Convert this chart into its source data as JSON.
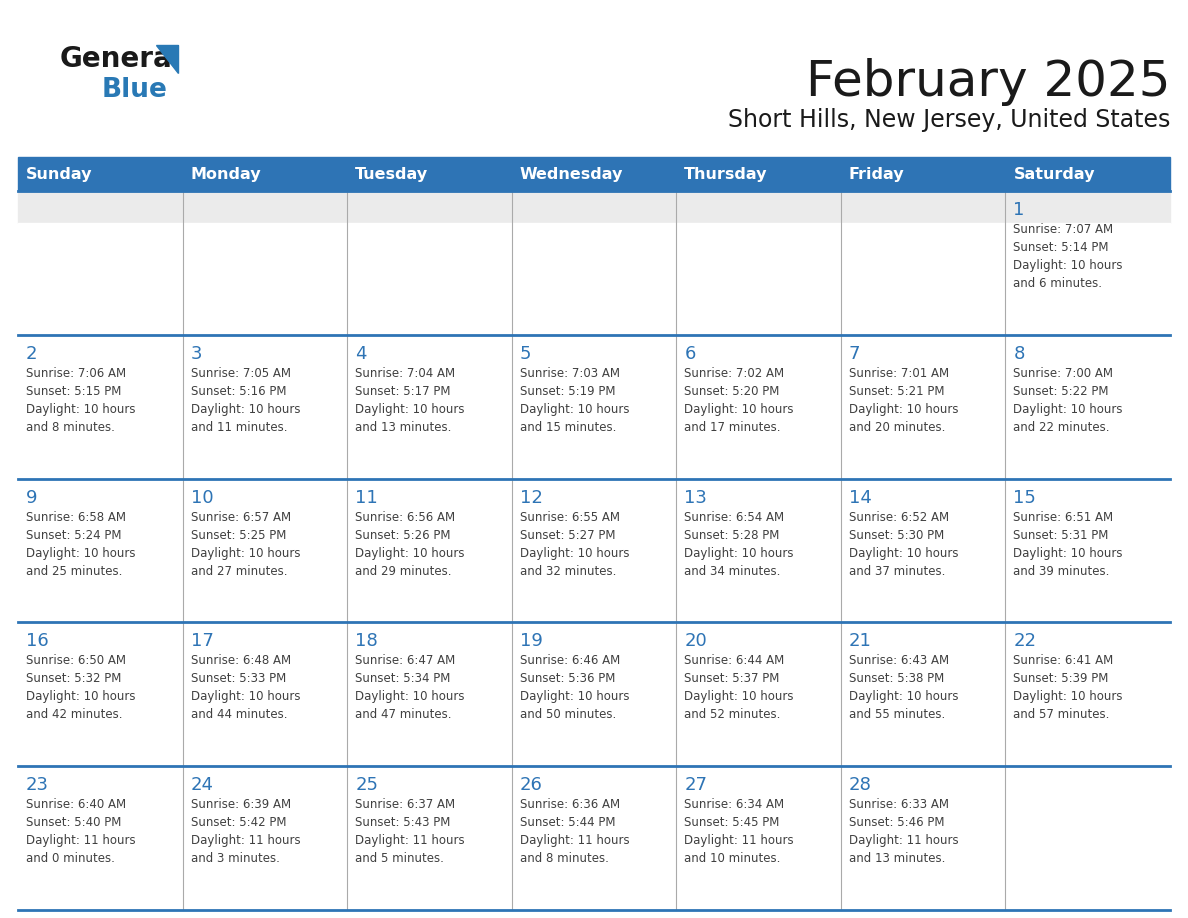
{
  "title": "February 2025",
  "subtitle": "Short Hills, New Jersey, United States",
  "header_bg": "#2E74B5",
  "header_text_color": "#FFFFFF",
  "weekdays": [
    "Sunday",
    "Monday",
    "Tuesday",
    "Wednesday",
    "Thursday",
    "Friday",
    "Saturday"
  ],
  "bg_color": "#FFFFFF",
  "first_row_bg": "#EBEBEB",
  "cell_text_color": "#404040",
  "day_num_color": "#2E74B5",
  "border_color": "#2E74B5",
  "col_sep_color": "#AAAAAA",
  "logo_general_color": "#1A1A1A",
  "logo_blue_color": "#2979B5",
  "title_color": "#1A1A1A",
  "subtitle_color": "#1A1A1A",
  "weeks": [
    [
      {
        "day": null,
        "info": null
      },
      {
        "day": null,
        "info": null
      },
      {
        "day": null,
        "info": null
      },
      {
        "day": null,
        "info": null
      },
      {
        "day": null,
        "info": null
      },
      {
        "day": null,
        "info": null
      },
      {
        "day": 1,
        "info": "Sunrise: 7:07 AM\nSunset: 5:14 PM\nDaylight: 10 hours\nand 6 minutes."
      }
    ],
    [
      {
        "day": 2,
        "info": "Sunrise: 7:06 AM\nSunset: 5:15 PM\nDaylight: 10 hours\nand 8 minutes."
      },
      {
        "day": 3,
        "info": "Sunrise: 7:05 AM\nSunset: 5:16 PM\nDaylight: 10 hours\nand 11 minutes."
      },
      {
        "day": 4,
        "info": "Sunrise: 7:04 AM\nSunset: 5:17 PM\nDaylight: 10 hours\nand 13 minutes."
      },
      {
        "day": 5,
        "info": "Sunrise: 7:03 AM\nSunset: 5:19 PM\nDaylight: 10 hours\nand 15 minutes."
      },
      {
        "day": 6,
        "info": "Sunrise: 7:02 AM\nSunset: 5:20 PM\nDaylight: 10 hours\nand 17 minutes."
      },
      {
        "day": 7,
        "info": "Sunrise: 7:01 AM\nSunset: 5:21 PM\nDaylight: 10 hours\nand 20 minutes."
      },
      {
        "day": 8,
        "info": "Sunrise: 7:00 AM\nSunset: 5:22 PM\nDaylight: 10 hours\nand 22 minutes."
      }
    ],
    [
      {
        "day": 9,
        "info": "Sunrise: 6:58 AM\nSunset: 5:24 PM\nDaylight: 10 hours\nand 25 minutes."
      },
      {
        "day": 10,
        "info": "Sunrise: 6:57 AM\nSunset: 5:25 PM\nDaylight: 10 hours\nand 27 minutes."
      },
      {
        "day": 11,
        "info": "Sunrise: 6:56 AM\nSunset: 5:26 PM\nDaylight: 10 hours\nand 29 minutes."
      },
      {
        "day": 12,
        "info": "Sunrise: 6:55 AM\nSunset: 5:27 PM\nDaylight: 10 hours\nand 32 minutes."
      },
      {
        "day": 13,
        "info": "Sunrise: 6:54 AM\nSunset: 5:28 PM\nDaylight: 10 hours\nand 34 minutes."
      },
      {
        "day": 14,
        "info": "Sunrise: 6:52 AM\nSunset: 5:30 PM\nDaylight: 10 hours\nand 37 minutes."
      },
      {
        "day": 15,
        "info": "Sunrise: 6:51 AM\nSunset: 5:31 PM\nDaylight: 10 hours\nand 39 minutes."
      }
    ],
    [
      {
        "day": 16,
        "info": "Sunrise: 6:50 AM\nSunset: 5:32 PM\nDaylight: 10 hours\nand 42 minutes."
      },
      {
        "day": 17,
        "info": "Sunrise: 6:48 AM\nSunset: 5:33 PM\nDaylight: 10 hours\nand 44 minutes."
      },
      {
        "day": 18,
        "info": "Sunrise: 6:47 AM\nSunset: 5:34 PM\nDaylight: 10 hours\nand 47 minutes."
      },
      {
        "day": 19,
        "info": "Sunrise: 6:46 AM\nSunset: 5:36 PM\nDaylight: 10 hours\nand 50 minutes."
      },
      {
        "day": 20,
        "info": "Sunrise: 6:44 AM\nSunset: 5:37 PM\nDaylight: 10 hours\nand 52 minutes."
      },
      {
        "day": 21,
        "info": "Sunrise: 6:43 AM\nSunset: 5:38 PM\nDaylight: 10 hours\nand 55 minutes."
      },
      {
        "day": 22,
        "info": "Sunrise: 6:41 AM\nSunset: 5:39 PM\nDaylight: 10 hours\nand 57 minutes."
      }
    ],
    [
      {
        "day": 23,
        "info": "Sunrise: 6:40 AM\nSunset: 5:40 PM\nDaylight: 11 hours\nand 0 minutes."
      },
      {
        "day": 24,
        "info": "Sunrise: 6:39 AM\nSunset: 5:42 PM\nDaylight: 11 hours\nand 3 minutes."
      },
      {
        "day": 25,
        "info": "Sunrise: 6:37 AM\nSunset: 5:43 PM\nDaylight: 11 hours\nand 5 minutes."
      },
      {
        "day": 26,
        "info": "Sunrise: 6:36 AM\nSunset: 5:44 PM\nDaylight: 11 hours\nand 8 minutes."
      },
      {
        "day": 27,
        "info": "Sunrise: 6:34 AM\nSunset: 5:45 PM\nDaylight: 11 hours\nand 10 minutes."
      },
      {
        "day": 28,
        "info": "Sunrise: 6:33 AM\nSunset: 5:46 PM\nDaylight: 11 hours\nand 13 minutes."
      },
      {
        "day": null,
        "info": null
      }
    ]
  ]
}
